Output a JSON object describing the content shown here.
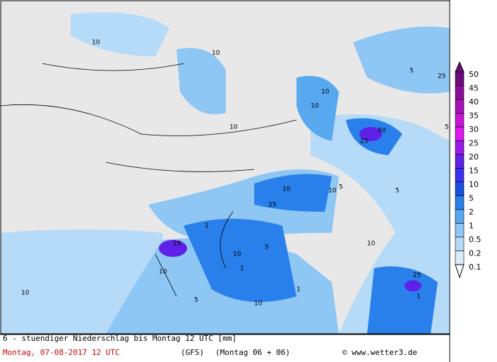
{
  "legend": {
    "levels": [
      {
        "value": 50,
        "color": "#6e0a7e"
      },
      {
        "value": 45,
        "color": "#8c0c9c"
      },
      {
        "value": 40,
        "color": "#a810b8"
      },
      {
        "value": 35,
        "color": "#c814d8"
      },
      {
        "value": 30,
        "color": "#e018f0"
      },
      {
        "value": 25,
        "color": "#9a18e8"
      },
      {
        "value": 20,
        "color": "#6020e8"
      },
      {
        "value": 15,
        "color": "#3a30f0"
      },
      {
        "value": 10,
        "color": "#1850e0"
      },
      {
        "value": 5,
        "color": "#2a80ea"
      },
      {
        "value": 2,
        "color": "#58a8f0"
      },
      {
        "value": 1,
        "color": "#8ec6f4"
      },
      {
        "value": 0.5,
        "color": "#b6dbf8"
      },
      {
        "value": 0.2,
        "color": "#d8ecfb"
      },
      {
        "value": 0.1,
        "color": "#ffffff"
      }
    ]
  },
  "map_labels": [
    "10",
    "10",
    "5",
    "10",
    "25",
    "10",
    "10",
    "50",
    "25",
    "10",
    "5",
    "25",
    "10",
    "1",
    "25",
    "10",
    "5",
    "1",
    "10",
    "5",
    "10",
    "1",
    "5",
    "10",
    "25",
    "1",
    "5",
    "10"
  ],
  "footer": {
    "title": "6 - stuendiger Niederschlag bis Montag 12 UTC [mm]",
    "date": "Montag, 07-08-2017  12 UTC",
    "model": "(GFS)",
    "run": "(Montag 06 + 06)",
    "credit": "© www.wetter3.de"
  }
}
